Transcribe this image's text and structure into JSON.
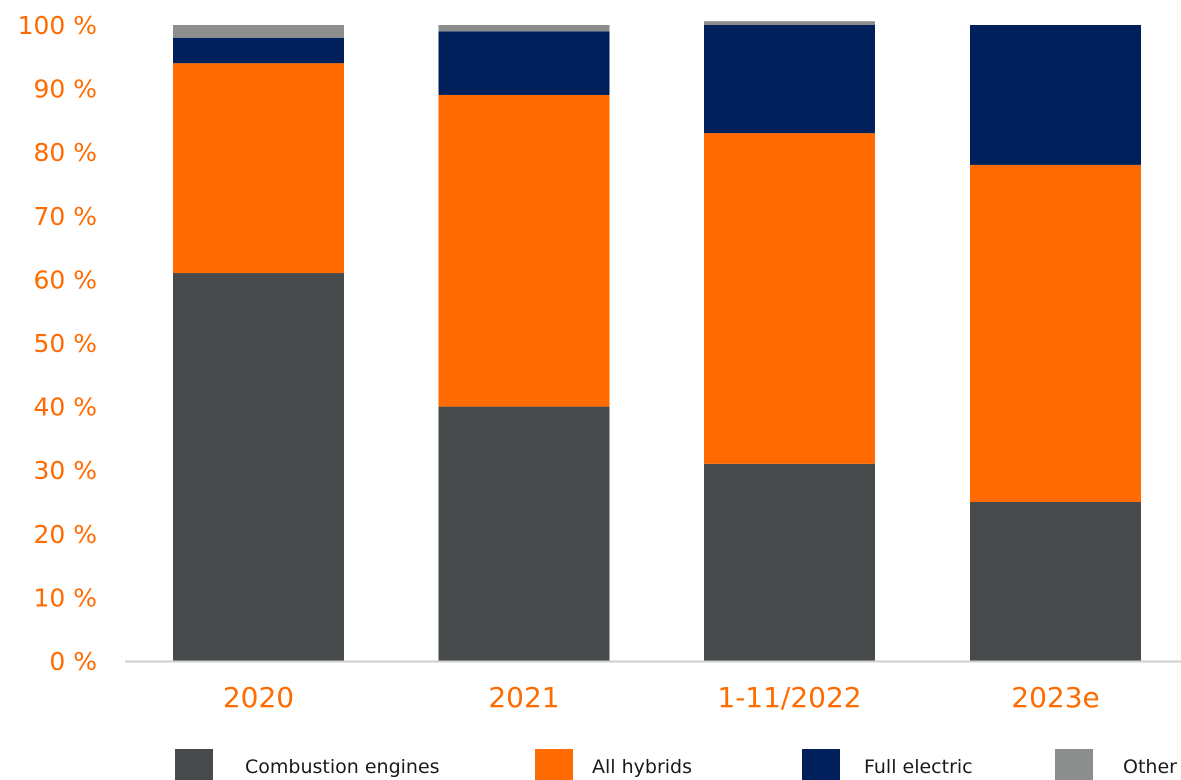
{
  "chart_data": {
    "type": "bar",
    "stacked": true,
    "categories": [
      "2020",
      "2021",
      "1-11/2022",
      "2023e"
    ],
    "series": [
      {
        "name": "Combustion engines",
        "color": "#474a4a",
        "values": [
          61,
          40,
          31,
          25
        ]
      },
      {
        "name": "All hybrids",
        "color": "#ff6b00",
        "values": [
          33,
          49,
          52,
          53
        ]
      },
      {
        "name": "Full electric",
        "color": "#00205b",
        "values": [
          4,
          10,
          17,
          22
        ]
      },
      {
        "name": "Other",
        "color": "#8c8e8e",
        "values": [
          2,
          1,
          0.6,
          0
        ]
      }
    ],
    "y_ticks": [
      "0 %",
      "10 %",
      "20 %",
      "30 %",
      "40 %",
      "50 %",
      "60 %",
      "70 %",
      "80 %",
      "90 %",
      "100 %"
    ],
    "ylim": [
      0,
      100
    ],
    "grid": false,
    "legend_position": "bottom",
    "axis_label_color": "#ff6b00",
    "axis_line_color": "#cfcfcf"
  }
}
